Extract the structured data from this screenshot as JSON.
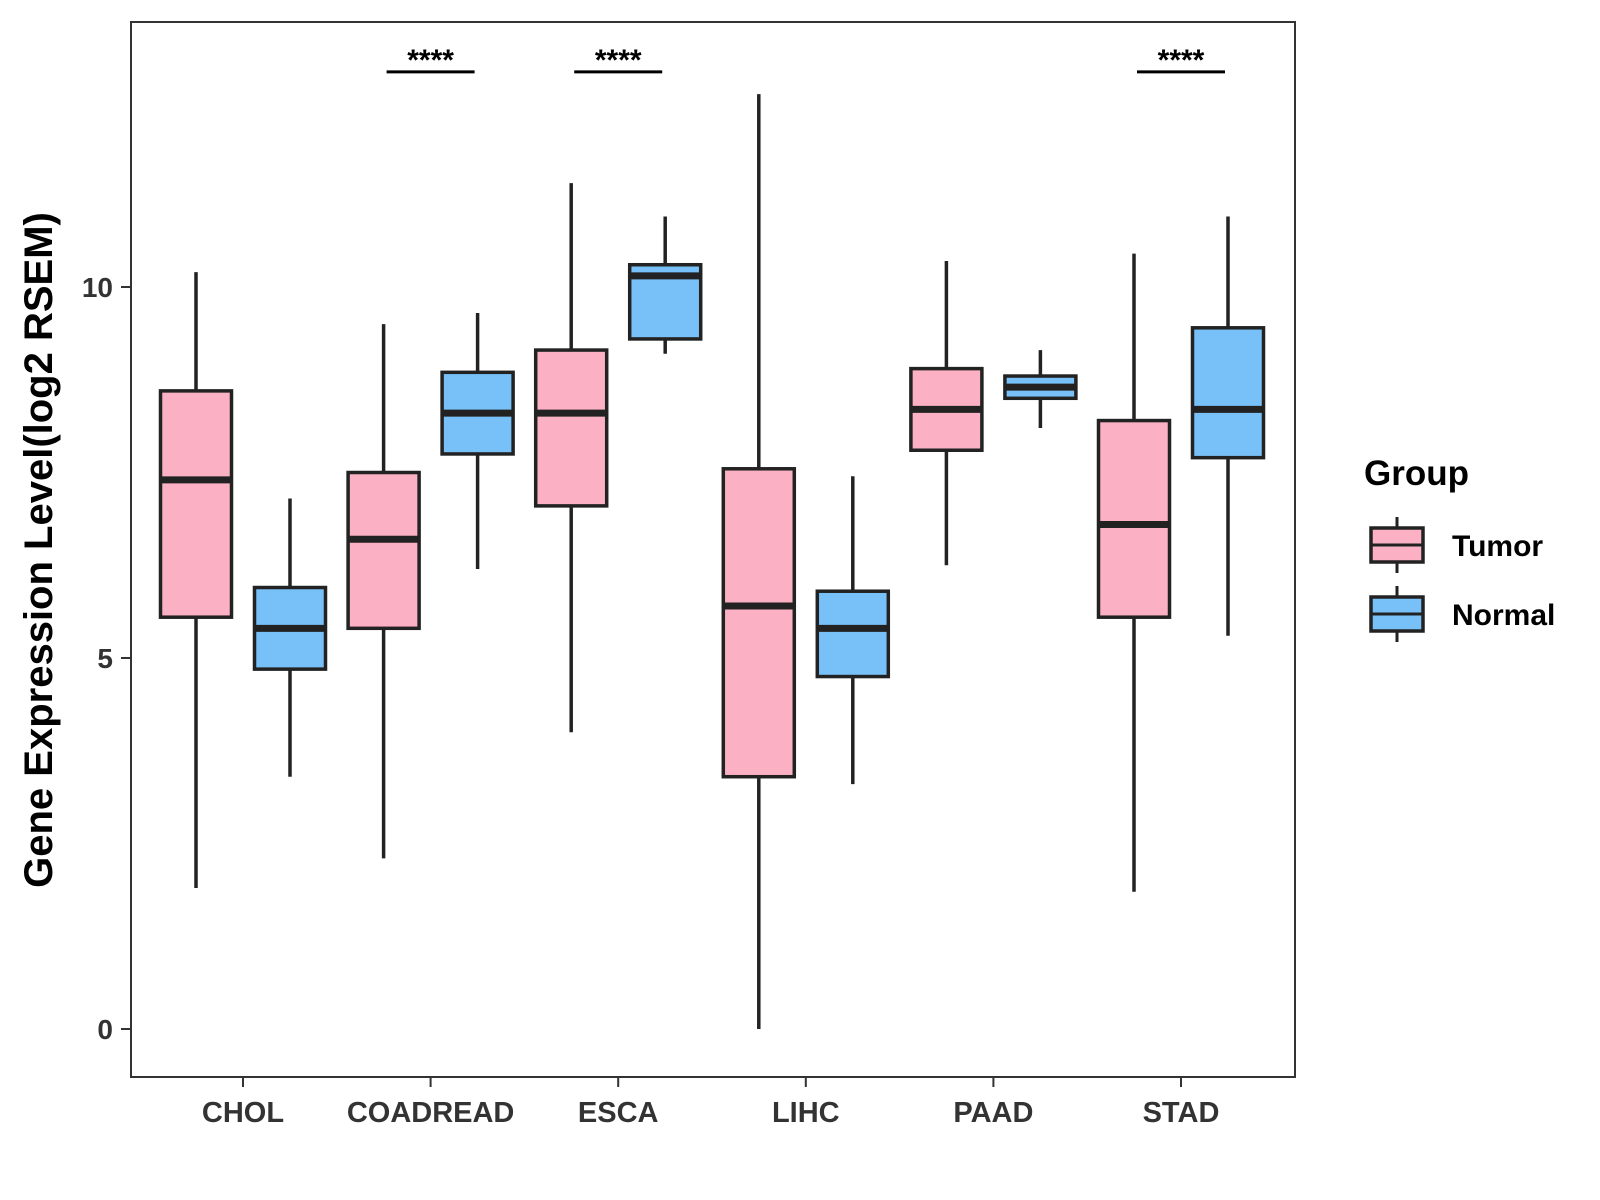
{
  "chart_data": {
    "type": "boxplot",
    "title": "",
    "xlabel": "",
    "ylabel": "Gene Expression Level(log2 RSEM)",
    "ylim": [
      -0.6,
      13.6
    ],
    "yticks": [
      0,
      5,
      10
    ],
    "ytick_labels": [
      "0",
      "5",
      "10"
    ],
    "grid": false,
    "categories": [
      "CHOL",
      "COADREAD",
      "ESCA",
      "LIHC",
      "PAAD",
      "STAD"
    ],
    "legend": {
      "title": "Group",
      "position": "right",
      "entries": [
        "Tumor",
        "Normal"
      ]
    },
    "series": [
      {
        "name": "Tumor",
        "color": "#FBB1C3",
        "boxes": [
          {
            "min": 1.9,
            "q1": 5.55,
            "median": 7.4,
            "q3": 8.6,
            "max": 10.2
          },
          {
            "min": 2.3,
            "q1": 5.4,
            "median": 6.6,
            "q3": 7.5,
            "max": 9.5
          },
          {
            "min": 4.0,
            "q1": 7.05,
            "median": 8.3,
            "q3": 9.15,
            "max": 11.4
          },
          {
            "min": 0.0,
            "q1": 3.4,
            "median": 5.7,
            "q3": 7.55,
            "max": 12.6
          },
          {
            "min": 6.25,
            "q1": 7.8,
            "median": 8.35,
            "q3": 8.9,
            "max": 10.35
          },
          {
            "min": 1.85,
            "q1": 5.55,
            "median": 6.8,
            "q3": 8.2,
            "max": 10.45
          }
        ]
      },
      {
        "name": "Normal",
        "color": "#78C1F8",
        "boxes": [
          {
            "min": 3.4,
            "q1": 4.85,
            "median": 5.4,
            "q3": 5.95,
            "max": 7.15
          },
          {
            "min": 6.2,
            "q1": 7.75,
            "median": 8.3,
            "q3": 8.85,
            "max": 9.65
          },
          {
            "min": 9.1,
            "q1": 9.3,
            "median": 10.15,
            "q3": 10.3,
            "max": 10.95
          },
          {
            "min": 3.3,
            "q1": 4.75,
            "median": 5.4,
            "q3": 5.9,
            "max": 7.45
          },
          {
            "min": 8.1,
            "q1": 8.5,
            "median": 8.65,
            "q3": 8.8,
            "max": 9.15
          },
          {
            "min": 5.3,
            "q1": 7.7,
            "median": 8.35,
            "q3": 9.45,
            "max": 10.95
          }
        ]
      }
    ],
    "significance": [
      {
        "category": "COADREAD",
        "label": "****"
      },
      {
        "category": "ESCA",
        "label": "****"
      },
      {
        "category": "STAD",
        "label": "****"
      }
    ],
    "significance_level": 12.9
  }
}
